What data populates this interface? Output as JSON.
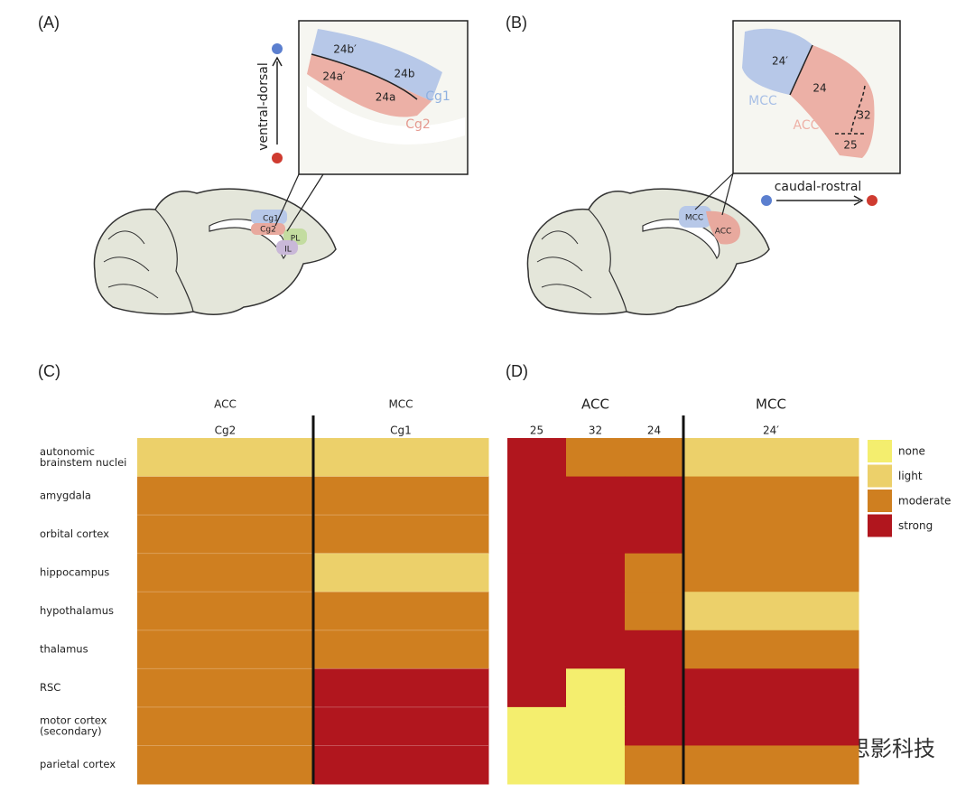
{
  "panel_a": {
    "label": "(A)",
    "axis_label": "ventral-dorsal",
    "inset_labels": [
      "24b′",
      "24a′",
      "24b",
      "24a",
      "Cg1",
      "Cg2"
    ],
    "brain_labels": [
      "Cg1",
      "Cg2",
      "PL",
      "IL"
    ]
  },
  "panel_b": {
    "label": "(B)",
    "axis_label": "caudal-rostral",
    "inset_labels": [
      "24′",
      "24",
      "32",
      "25",
      "MCC",
      "ACC"
    ],
    "brain_labels": [
      "MCC",
      "ACC"
    ]
  },
  "panel_c": {
    "label": "(C)",
    "groups": [
      "ACC",
      "MCC"
    ],
    "columns": [
      "Cg2",
      "Cg1"
    ],
    "cells": [
      [
        "light",
        "light"
      ],
      [
        "moderate",
        "moderate"
      ],
      [
        "moderate",
        "moderate"
      ],
      [
        "moderate",
        "light"
      ],
      [
        "moderate",
        "moderate"
      ],
      [
        "moderate",
        "moderate"
      ],
      [
        "moderate",
        "strong"
      ],
      [
        "moderate",
        "strong"
      ],
      [
        "moderate",
        "strong"
      ]
    ]
  },
  "panel_d": {
    "label": "(D)",
    "groups": [
      "ACC",
      "MCC"
    ],
    "columns": [
      "25",
      "32",
      "24",
      "24′"
    ],
    "cells": [
      [
        "strong",
        "moderate",
        "moderate",
        "light"
      ],
      [
        "strong",
        "strong",
        "strong",
        "moderate"
      ],
      [
        "strong",
        "strong",
        "strong",
        "moderate"
      ],
      [
        "strong",
        "strong",
        "moderate",
        "moderate"
      ],
      [
        "strong",
        "strong",
        "moderate",
        "light"
      ],
      [
        "strong",
        "strong",
        "strong",
        "moderate"
      ],
      [
        "strong",
        "none",
        "strong",
        "strong"
      ],
      [
        "none",
        "none",
        "strong",
        "strong"
      ],
      [
        "none",
        "none",
        "moderate",
        "moderate"
      ]
    ]
  },
  "row_labels": [
    [
      "autonomic",
      "brainstem nuclei"
    ],
    [
      "amygdala"
    ],
    [
      "orbital cortex"
    ],
    [
      "hippocampus"
    ],
    [
      "hypothalamus"
    ],
    [
      "thalamus"
    ],
    [
      "RSC"
    ],
    [
      "motor cortex",
      "(secondary)"
    ],
    [
      "parietal cortex"
    ]
  ],
  "legend": {
    "levels": [
      "none",
      "light",
      "moderate",
      "strong"
    ],
    "colors": [
      "#f4ee6e",
      "#ecd06a",
      "#cf7f20",
      "#b1161e"
    ]
  },
  "watermark": "思影科技"
}
